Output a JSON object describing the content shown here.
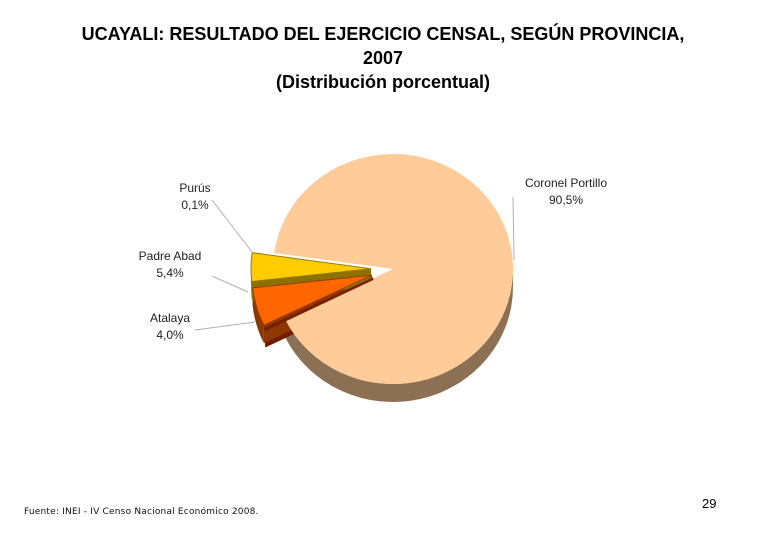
{
  "slide": {
    "title_line1": "UCAYALI: RESULTADO DEL EJERCICIO CENSAL, SEGÚN PROVINCIA,",
    "title_line2": "2007",
    "title_line3": "(Distribución porcentual)",
    "source": "Fuente: INEI - IV Censo Nacional Económico 2008.",
    "page_number": "29"
  },
  "chart_data": {
    "type": "pie",
    "title": "UCAYALI: RESULTADO DEL EJERCICIO CENSAL, SEGÚN PROVINCIA, 2007 (Distribución porcentual)",
    "slices": [
      {
        "label": "Coronel Portillo",
        "value": 90.5,
        "value_label": "90,5%",
        "color": "#FFCC99"
      },
      {
        "label": "Purús",
        "value": 0.1,
        "value_label": "0,1%",
        "color": "#CC3300"
      },
      {
        "label": "Padre Abad",
        "value": 5.4,
        "value_label": "5,4%",
        "color": "#FF6600"
      },
      {
        "label": "Atalaya",
        "value": 4.0,
        "value_label": "4,0%",
        "color": "#FFCC00"
      }
    ]
  }
}
